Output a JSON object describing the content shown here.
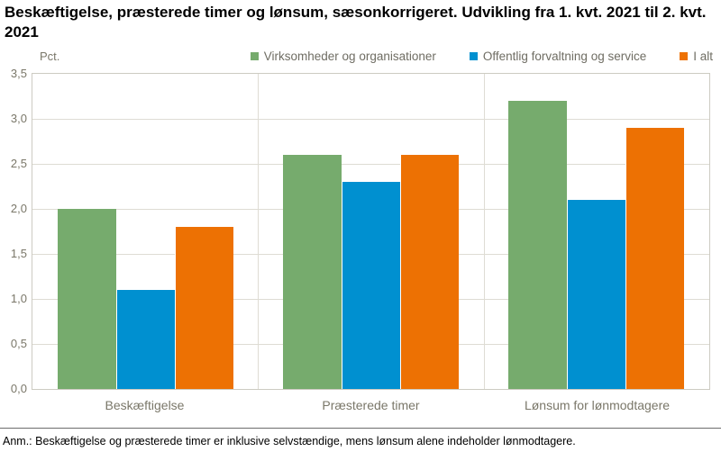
{
  "chart_data": {
    "type": "bar",
    "title": "Beskæftigelse, præsterede timer og lønsum, sæsonkorrigeret. Udvikling fra 1. kvt. 2021 til 2. kvt. 2021",
    "unit_label": "Pct.",
    "categories": [
      "Beskæftigelse",
      "Præsterede timer",
      "Lønsum for lønmodtagere"
    ],
    "series": [
      {
        "name": "Virksomheder og organisationer",
        "color": "#76AB6D",
        "values": [
          2.0,
          2.6,
          3.2
        ]
      },
      {
        "name": "Offentlig forvaltning og service",
        "color": "#0090D0",
        "values": [
          1.1,
          2.3,
          2.1
        ]
      },
      {
        "name": "I alt",
        "color": "#ED7103",
        "values": [
          1.8,
          2.6,
          2.9
        ]
      }
    ],
    "ylim": [
      0,
      3.5
    ],
    "ytick_step": 0.5,
    "ytick_labels": [
      "0,0",
      "0,5",
      "1,0",
      "1,5",
      "2,0",
      "2,5",
      "3,0",
      "3,5"
    ],
    "grid": true,
    "legend_position": "top-right"
  },
  "footnote": "Anm.: Beskæftigelse og præsterede timer er inklusive selvstændige, mens lønsum alene indeholder lønmodtagere.",
  "colors": {
    "green": "#76AB6D",
    "blue": "#0090D0",
    "orange": "#ED7103",
    "axis_text": "#7A7769",
    "grid": "#DEDCD4",
    "plot_border": "#CDCBC2"
  }
}
